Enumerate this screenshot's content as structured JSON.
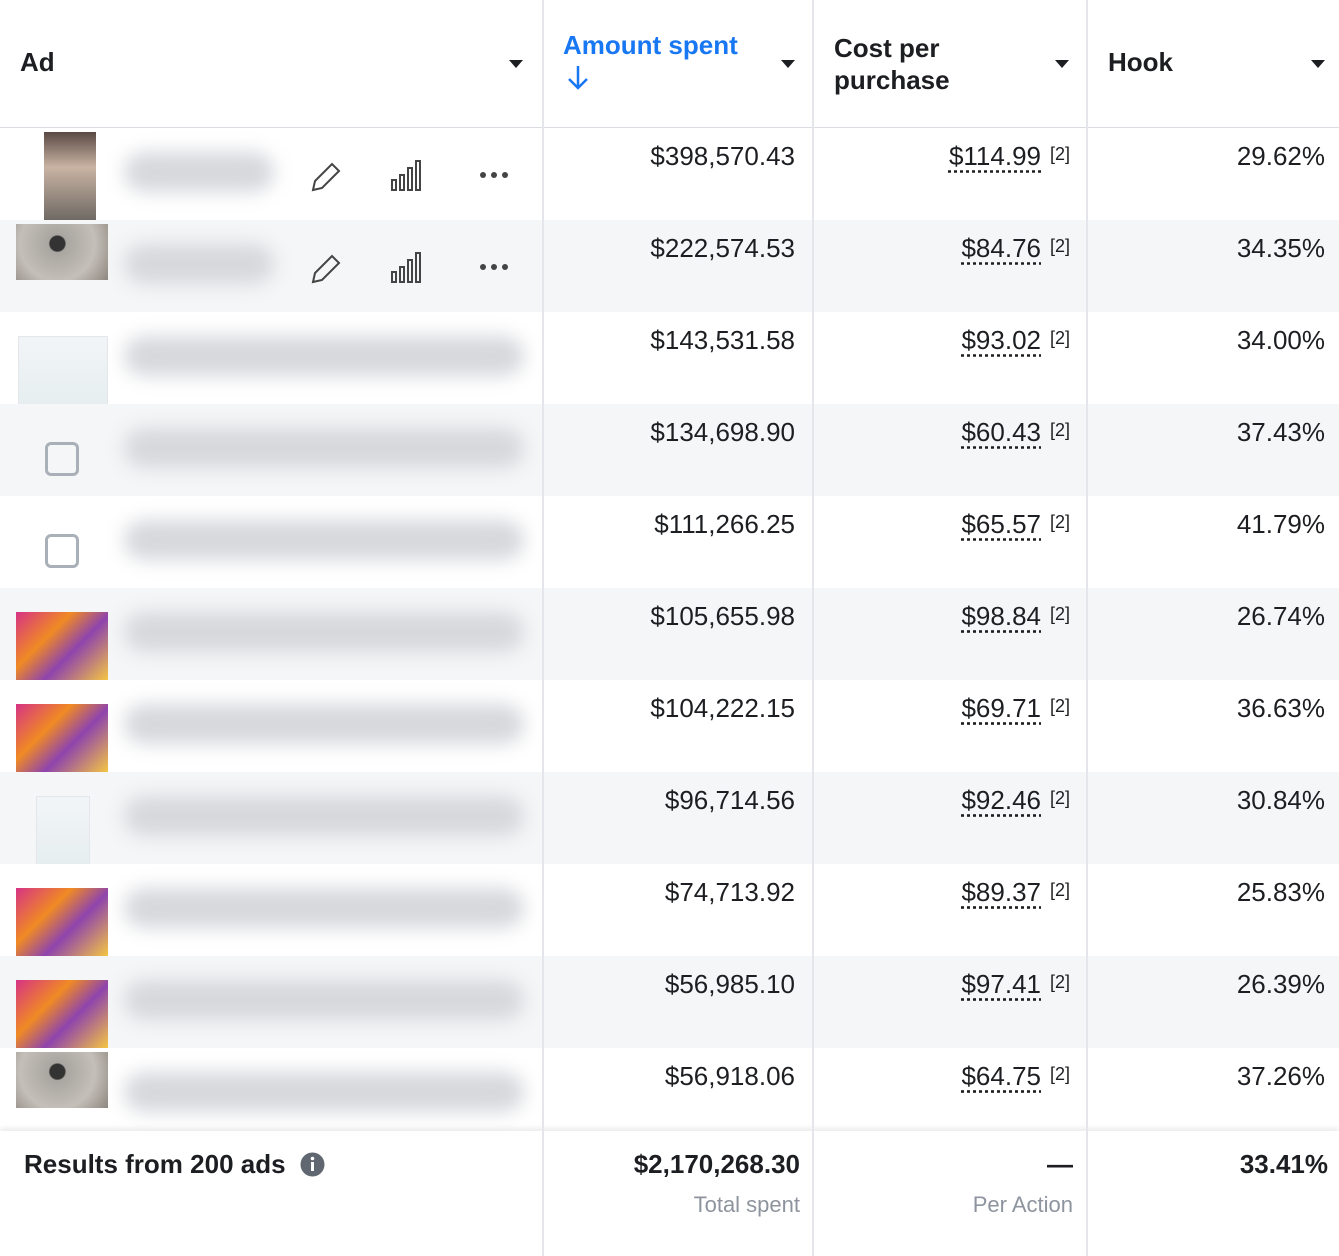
{
  "header": {
    "columns": [
      "Ad",
      "Amount spent",
      "Cost per purchase",
      "Hook"
    ]
  },
  "rows": [
    {
      "amount": "$398,570.43",
      "cost": "$114.99",
      "note": "[2]",
      "hook": "29.62%"
    },
    {
      "amount": "$222,574.53",
      "cost": "$84.76",
      "note": "[2]",
      "hook": "34.35%"
    },
    {
      "amount": "$143,531.58",
      "cost": "$93.02",
      "note": "[2]",
      "hook": "34.00%"
    },
    {
      "amount": "$134,698.90",
      "cost": "$60.43",
      "note": "[2]",
      "hook": "37.43%"
    },
    {
      "amount": "$111,266.25",
      "cost": "$65.57",
      "note": "[2]",
      "hook": "41.79%"
    },
    {
      "amount": "$105,655.98",
      "cost": "$98.84",
      "note": "[2]",
      "hook": "26.74%"
    },
    {
      "amount": "$104,222.15",
      "cost": "$69.71",
      "note": "[2]",
      "hook": "36.63%"
    },
    {
      "amount": "$96,714.56",
      "cost": "$92.46",
      "note": "[2]",
      "hook": "30.84%"
    },
    {
      "amount": "$74,713.92",
      "cost": "$89.37",
      "note": "[2]",
      "hook": "25.83%"
    },
    {
      "amount": "$56,985.10",
      "cost": "$97.41",
      "note": "[2]",
      "hook": "26.39%"
    },
    {
      "amount": "$56,918.06",
      "cost": "$64.75",
      "note": "[2]",
      "hook": "37.26%"
    }
  ],
  "footer": {
    "label": "Results from 200 ads",
    "total": "$2,170,268.30",
    "total_caption": "Total spent",
    "cost": "—",
    "cost_caption": "Per Action",
    "hook": "33.41%"
  }
}
